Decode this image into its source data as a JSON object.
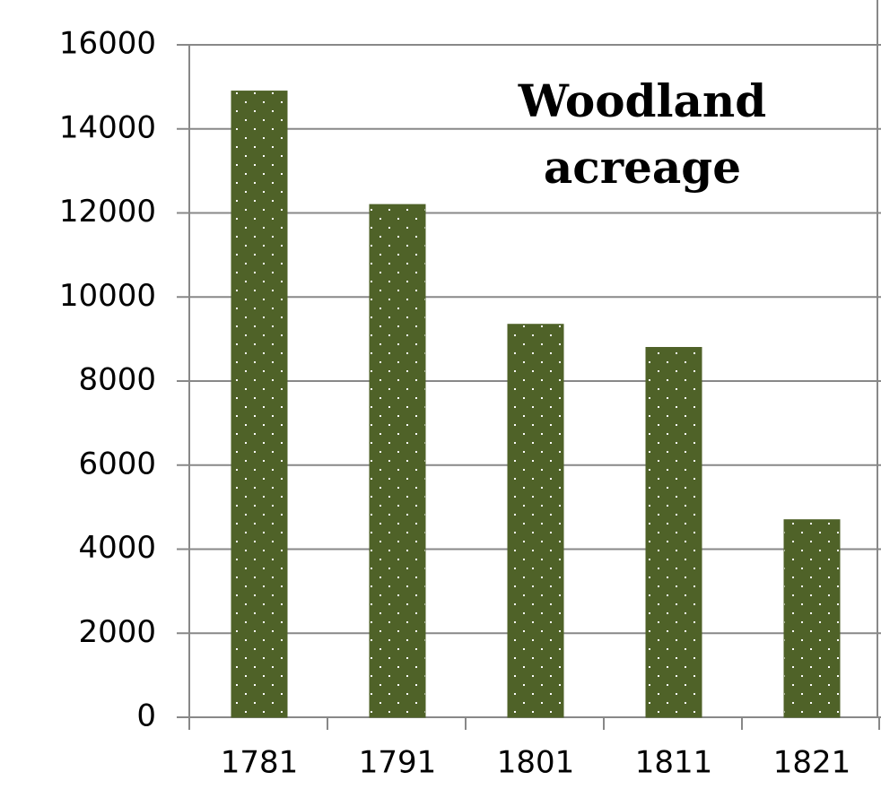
{
  "chart_data": {
    "type": "bar",
    "title": "Woodland acreage",
    "categories": [
      "1781",
      "1791",
      "1801",
      "1811",
      "1821"
    ],
    "values": [
      14900,
      12200,
      9350,
      8800,
      4700
    ],
    "color": "#4f6228",
    "ylim": [
      0,
      16000
    ],
    "yticks": [
      0,
      2000,
      4000,
      6000,
      8000,
      10000,
      12000,
      14000,
      16000
    ],
    "grid": true
  }
}
